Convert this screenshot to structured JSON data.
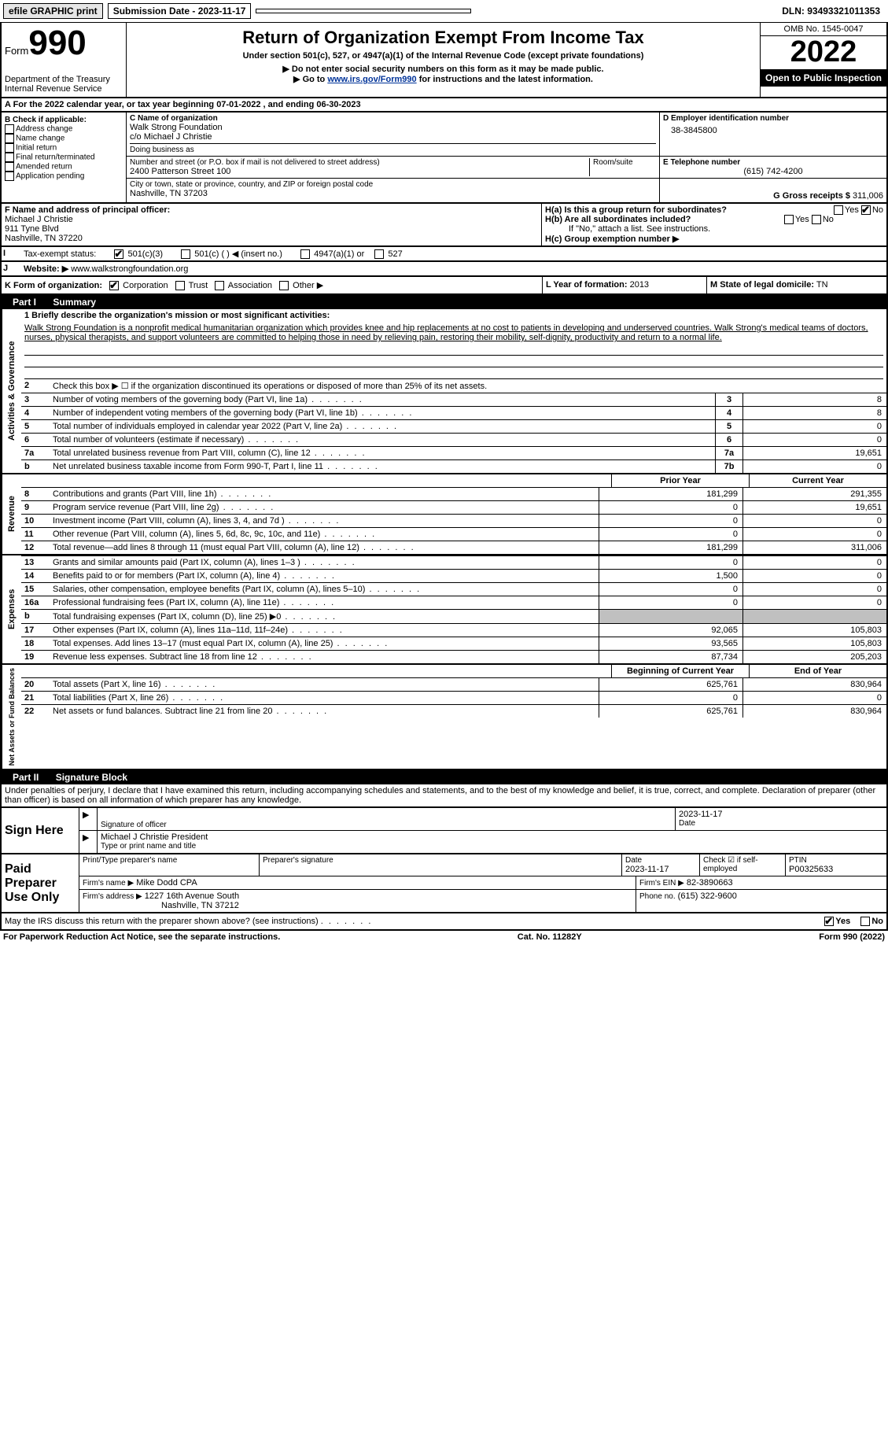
{
  "topbar": {
    "efile": "efile GRAPHIC print",
    "submission_label": "Submission Date - 2023-11-17",
    "dln": "DLN: 93493321011353"
  },
  "header": {
    "form_prefix": "Form",
    "form_number": "990",
    "title": "Return of Organization Exempt From Income Tax",
    "subtitle": "Under section 501(c), 527, or 4947(a)(1) of the Internal Revenue Code (except private foundations)",
    "note1": "▶ Do not enter social security numbers on this form as it may be made public.",
    "note2_pre": "▶ Go to ",
    "note2_link": "www.irs.gov/Form990",
    "note2_post": " for instructions and the latest information.",
    "dept": "Department of the Treasury",
    "irs": "Internal Revenue Service",
    "omb": "OMB No. 1545-0047",
    "year": "2022",
    "open_public": "Open to Public Inspection"
  },
  "row_a": "A For the 2022 calendar year, or tax year beginning 07-01-2022    , and ending 06-30-2023",
  "section_b": {
    "label": "B Check if applicable:",
    "opts": [
      "Address change",
      "Name change",
      "Initial return",
      "Final return/terminated",
      "Amended return",
      "Application pending"
    ]
  },
  "section_c": {
    "label": "C Name of organization",
    "name": "Walk Strong Foundation",
    "co": "c/o Michael J Christie",
    "dba_label": "Doing business as",
    "addr_label": "Number and street (or P.O. box if mail is not delivered to street address)",
    "room_label": "Room/suite",
    "addr": "2400 Patterson Street 100",
    "city_label": "City or town, state or province, country, and ZIP or foreign postal code",
    "city": "Nashville, TN  37203"
  },
  "section_d": {
    "label": "D Employer identification number",
    "ein": "38-3845800",
    "phone_label": "E Telephone number",
    "phone": "(615) 742-4200",
    "gross_label": "G Gross receipts $",
    "gross": "311,006"
  },
  "section_f": {
    "label": "F  Name and address of principal officer:",
    "name": "Michael J Christie",
    "addr1": "911 Tyne Blvd",
    "addr2": "Nashville, TN  37220"
  },
  "section_h": {
    "ha": "H(a)  Is this a group return for subordinates?",
    "hb": "H(b)  Are all subordinates included?",
    "note": "If \"No,\" attach a list. See instructions.",
    "hc": "H(c)  Group exemption number ▶",
    "yes": "Yes",
    "no": "No"
  },
  "section_i": {
    "label": "Tax-exempt status:",
    "opts": [
      "501(c)(3)",
      "501(c) (   ) ◀ (insert no.)",
      "4947(a)(1) or",
      "527"
    ]
  },
  "section_j": {
    "label": "Website: ▶",
    "val": "www.walkstrongfoundation.org"
  },
  "section_k": {
    "label": "K Form of organization:",
    "opts": [
      "Corporation",
      "Trust",
      "Association",
      "Other ▶"
    ]
  },
  "section_l": {
    "label": "L Year of formation:",
    "val": "2013"
  },
  "section_m": {
    "label": "M State of legal domicile:",
    "val": "TN"
  },
  "part1": {
    "label": "Part I",
    "title": "Summary"
  },
  "mission": {
    "label": "1  Briefly describe the organization's mission or most significant activities:",
    "text": "Walk Strong Foundation is a nonprofit medical humanitarian organization which provides knee and hip replacements at no cost to patients in developing and underserved countries. Walk Strong's medical teams of doctors, nurses, physical therapists, and support volunteers are committed to helping those in need by relieving pain, restoring their mobility, self-dignity, productivity and return to a normal life."
  },
  "governance": {
    "title": "Activities & Governance",
    "line2": "Check this box ▶ ☐  if the organization discontinued its operations or disposed of more than 25% of its net assets.",
    "rows": [
      {
        "n": "3",
        "d": "Number of voting members of the governing body (Part VI, line 1a)",
        "box": "3",
        "v": "8"
      },
      {
        "n": "4",
        "d": "Number of independent voting members of the governing body (Part VI, line 1b)",
        "box": "4",
        "v": "8"
      },
      {
        "n": "5",
        "d": "Total number of individuals employed in calendar year 2022 (Part V, line 2a)",
        "box": "5",
        "v": "0"
      },
      {
        "n": "6",
        "d": "Total number of volunteers (estimate if necessary)",
        "box": "6",
        "v": "0"
      },
      {
        "n": "7a",
        "d": "Total unrelated business revenue from Part VIII, column (C), line 12",
        "box": "7a",
        "v": "19,651"
      },
      {
        "n": "b",
        "d": "Net unrelated business taxable income from Form 990-T, Part I, line 11",
        "box": "7b",
        "v": "0"
      }
    ]
  },
  "revenue": {
    "title": "Revenue",
    "header_prior": "Prior Year",
    "header_current": "Current Year",
    "rows": [
      {
        "n": "8",
        "d": "Contributions and grants (Part VIII, line 1h)",
        "p": "181,299",
        "c": "291,355"
      },
      {
        "n": "9",
        "d": "Program service revenue (Part VIII, line 2g)",
        "p": "0",
        "c": "19,651"
      },
      {
        "n": "10",
        "d": "Investment income (Part VIII, column (A), lines 3, 4, and 7d )",
        "p": "0",
        "c": "0"
      },
      {
        "n": "11",
        "d": "Other revenue (Part VIII, column (A), lines 5, 6d, 8c, 9c, 10c, and 11e)",
        "p": "0",
        "c": "0"
      },
      {
        "n": "12",
        "d": "Total revenue—add lines 8 through 11 (must equal Part VIII, column (A), line 12)",
        "p": "181,299",
        "c": "311,006"
      }
    ]
  },
  "expenses": {
    "title": "Expenses",
    "rows": [
      {
        "n": "13",
        "d": "Grants and similar amounts paid (Part IX, column (A), lines 1–3 )",
        "p": "0",
        "c": "0"
      },
      {
        "n": "14",
        "d": "Benefits paid to or for members (Part IX, column (A), line 4)",
        "p": "1,500",
        "c": "0"
      },
      {
        "n": "15",
        "d": "Salaries, other compensation, employee benefits (Part IX, column (A), lines 5–10)",
        "p": "0",
        "c": "0"
      },
      {
        "n": "16a",
        "d": "Professional fundraising fees (Part IX, column (A), line 11e)",
        "p": "0",
        "c": "0"
      },
      {
        "n": "b",
        "d": "Total fundraising expenses (Part IX, column (D), line 25) ▶0",
        "p": "",
        "c": "",
        "shaded": true
      },
      {
        "n": "17",
        "d": "Other expenses (Part IX, column (A), lines 11a–11d, 11f–24e)",
        "p": "92,065",
        "c": "105,803"
      },
      {
        "n": "18",
        "d": "Total expenses. Add lines 13–17 (must equal Part IX, column (A), line 25)",
        "p": "93,565",
        "c": "105,803"
      },
      {
        "n": "19",
        "d": "Revenue less expenses. Subtract line 18 from line 12",
        "p": "87,734",
        "c": "205,203"
      }
    ]
  },
  "netassets": {
    "title": "Net Assets or Fund Balances",
    "header_begin": "Beginning of Current Year",
    "header_end": "End of Year",
    "rows": [
      {
        "n": "20",
        "d": "Total assets (Part X, line 16)",
        "p": "625,761",
        "c": "830,964"
      },
      {
        "n": "21",
        "d": "Total liabilities (Part X, line 26)",
        "p": "0",
        "c": "0"
      },
      {
        "n": "22",
        "d": "Net assets or fund balances. Subtract line 21 from line 20",
        "p": "625,761",
        "c": "830,964"
      }
    ]
  },
  "part2": {
    "label": "Part II",
    "title": "Signature Block"
  },
  "declaration": "Under penalties of perjury, I declare that I have examined this return, including accompanying schedules and statements, and to the best of my knowledge and belief, it is true, correct, and complete. Declaration of preparer (other than officer) is based on all information of which preparer has any knowledge.",
  "sign_here": {
    "label": "Sign Here",
    "sig_label": "Signature of officer",
    "date_label": "Date",
    "date": "2023-11-17",
    "name": "Michael J Christie  President",
    "name_label": "Type or print name and title"
  },
  "paid_preparer": {
    "label": "Paid Preparer Use Only",
    "col1": "Print/Type preparer's name",
    "col2": "Preparer's signature",
    "col3_label": "Date",
    "col3": "2023-11-17",
    "col4_label": "Check ☑ if self-employed",
    "col5_label": "PTIN",
    "col5": "P00325633",
    "firm_name_label": "Firm's name    ▶",
    "firm_name": "Mike Dodd CPA",
    "firm_ein_label": "Firm's EIN ▶",
    "firm_ein": "82-3890663",
    "firm_addr_label": "Firm's address ▶",
    "firm_addr1": "1227 16th Avenue South",
    "firm_addr2": "Nashville, TN  37212",
    "phone_label": "Phone no.",
    "phone": "(615) 322-9600"
  },
  "may_irs": "May the IRS discuss this return with the preparer shown above? (see instructions)",
  "footer": {
    "left": "For Paperwork Reduction Act Notice, see the separate instructions.",
    "center": "Cat. No. 11282Y",
    "right": "Form 990 (2022)"
  }
}
